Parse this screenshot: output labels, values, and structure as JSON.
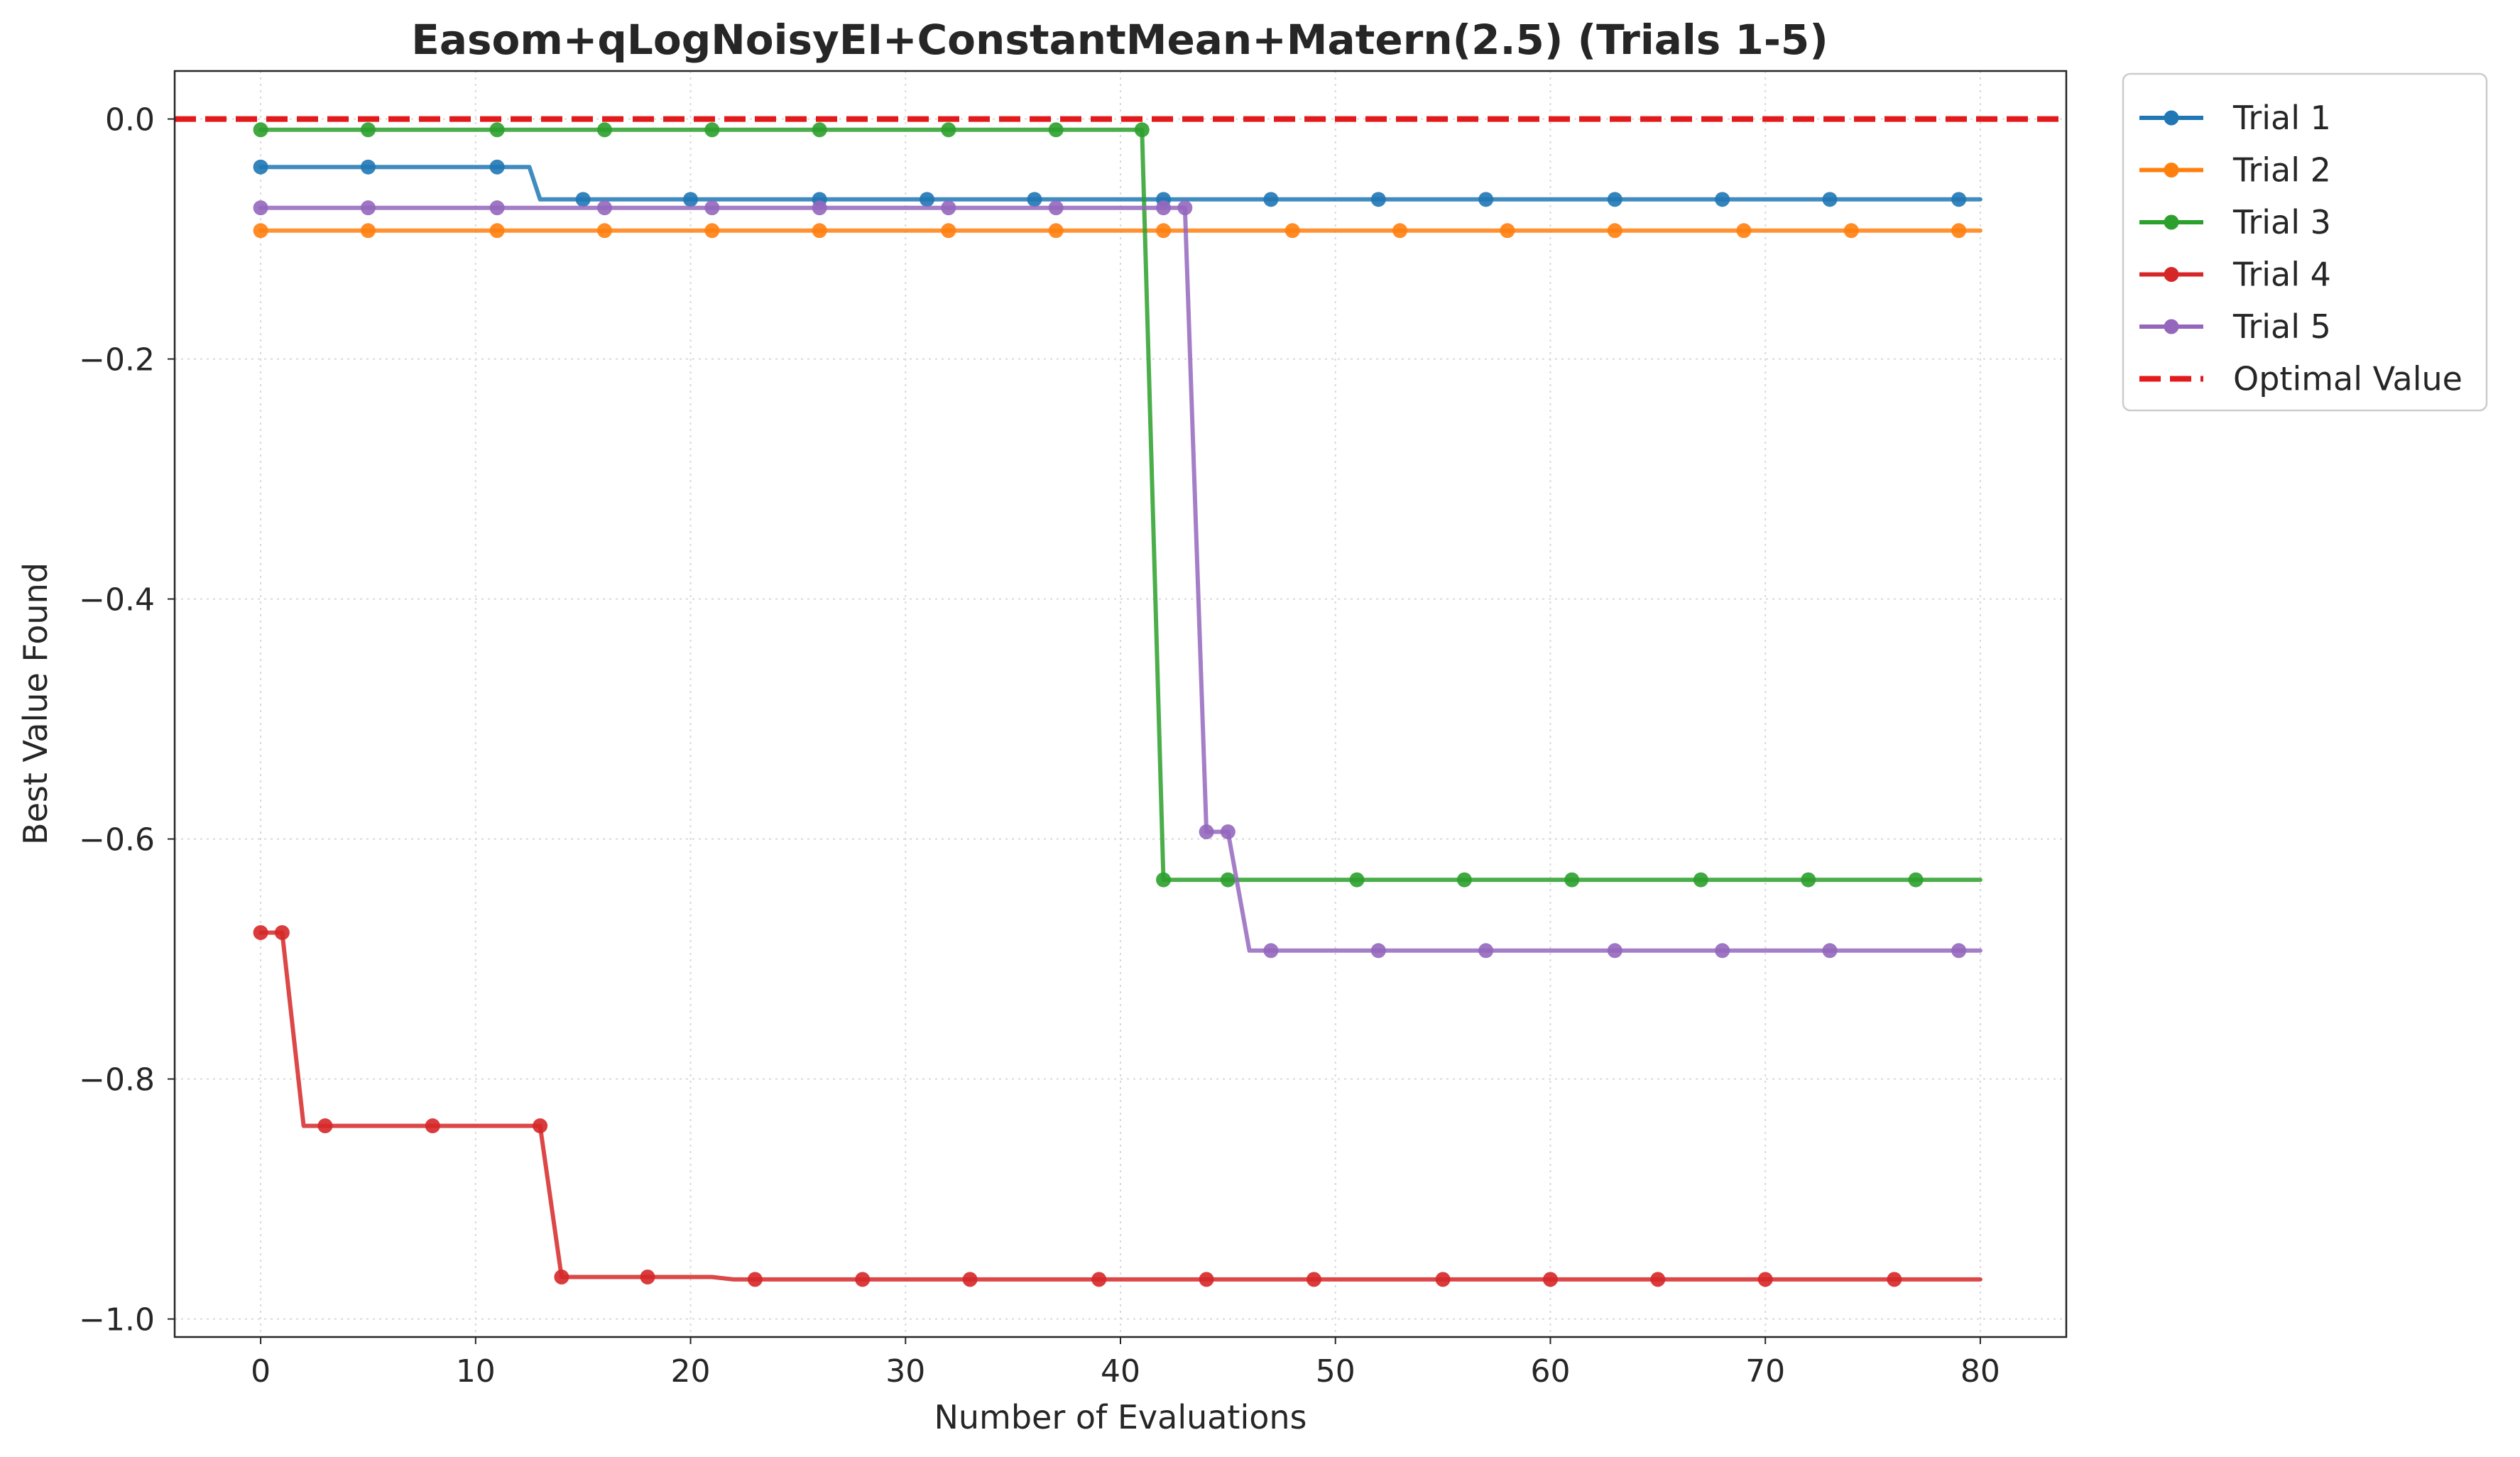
{
  "chart_data": {
    "type": "line",
    "title": "Easom+qLogNoisyEI+ConstantMean+Matern(2.5) (Trials 1-5)",
    "xlabel": "Number of Evaluations",
    "ylabel": "Best Value Found",
    "xlim": [
      -4,
      84
    ],
    "ylim": [
      -1.015,
      0.04
    ],
    "xticks": [
      0,
      10,
      20,
      30,
      40,
      50,
      60,
      70,
      80
    ],
    "xtick_labels": [
      "0",
      "10",
      "20",
      "30",
      "40",
      "50",
      "60",
      "70",
      "80"
    ],
    "yticks": [
      0.0,
      -0.2,
      -0.4,
      -0.6,
      -0.8,
      -1.0
    ],
    "ytick_labels": [
      "0.0",
      "−0.2",
      "−0.4",
      "−0.6",
      "−0.8",
      "−1.0"
    ],
    "grid": true,
    "legend_position": "outside-upper-right",
    "series": [
      {
        "name": "Trial 1",
        "color": "#1f77b4",
        "line": [
          [
            0,
            -0.04
          ],
          [
            12.5,
            -0.04
          ],
          [
            13,
            -0.067
          ],
          [
            80,
            -0.067
          ]
        ],
        "markers": [
          [
            0,
            -0.04
          ],
          [
            5,
            -0.04
          ],
          [
            11,
            -0.04
          ],
          [
            15,
            -0.067
          ],
          [
            20,
            -0.067
          ],
          [
            26,
            -0.067
          ],
          [
            31,
            -0.067
          ],
          [
            36,
            -0.067
          ],
          [
            42,
            -0.067
          ],
          [
            47,
            -0.067
          ],
          [
            52,
            -0.067
          ],
          [
            57,
            -0.067
          ],
          [
            63,
            -0.067
          ],
          [
            68,
            -0.067
          ],
          [
            73,
            -0.067
          ],
          [
            79,
            -0.067
          ]
        ]
      },
      {
        "name": "Trial 2",
        "color": "#ff7f0e",
        "line": [
          [
            0,
            -0.093
          ],
          [
            80,
            -0.093
          ]
        ],
        "markers": [
          [
            0,
            -0.093
          ],
          [
            5,
            -0.093
          ],
          [
            11,
            -0.093
          ],
          [
            16,
            -0.093
          ],
          [
            21,
            -0.093
          ],
          [
            26,
            -0.093
          ],
          [
            32,
            -0.093
          ],
          [
            37,
            -0.093
          ],
          [
            42,
            -0.093
          ],
          [
            48,
            -0.093
          ],
          [
            53,
            -0.093
          ],
          [
            58,
            -0.093
          ],
          [
            63,
            -0.093
          ],
          [
            69,
            -0.093
          ],
          [
            74,
            -0.093
          ],
          [
            79,
            -0.093
          ]
        ]
      },
      {
        "name": "Trial 3",
        "color": "#2ca02c",
        "line": [
          [
            0,
            -0.009
          ],
          [
            41,
            -0.009
          ],
          [
            42,
            -0.634
          ],
          [
            80,
            -0.634
          ]
        ],
        "markers": [
          [
            0,
            -0.009
          ],
          [
            5,
            -0.009
          ],
          [
            11,
            -0.009
          ],
          [
            16,
            -0.009
          ],
          [
            21,
            -0.009
          ],
          [
            26,
            -0.009
          ],
          [
            32,
            -0.009
          ],
          [
            37,
            -0.009
          ],
          [
            41,
            -0.009
          ],
          [
            42,
            -0.634
          ],
          [
            45,
            -0.634
          ],
          [
            51,
            -0.634
          ],
          [
            56,
            -0.634
          ],
          [
            61,
            -0.634
          ],
          [
            67,
            -0.634
          ],
          [
            72,
            -0.634
          ],
          [
            77,
            -0.634
          ]
        ]
      },
      {
        "name": "Trial 4",
        "color": "#d62728",
        "line": [
          [
            0,
            -0.678
          ],
          [
            1,
            -0.678
          ],
          [
            2,
            -0.839
          ],
          [
            13,
            -0.839
          ],
          [
            14,
            -0.965
          ],
          [
            21,
            -0.965
          ],
          [
            22,
            -0.967
          ],
          [
            80,
            -0.967
          ]
        ],
        "markers": [
          [
            0,
            -0.678
          ],
          [
            1,
            -0.678
          ],
          [
            3,
            -0.839
          ],
          [
            8,
            -0.839
          ],
          [
            13,
            -0.839
          ],
          [
            14,
            -0.965
          ],
          [
            18,
            -0.965
          ],
          [
            23,
            -0.967
          ],
          [
            28,
            -0.967
          ],
          [
            33,
            -0.967
          ],
          [
            39,
            -0.967
          ],
          [
            44,
            -0.967
          ],
          [
            49,
            -0.967
          ],
          [
            55,
            -0.967
          ],
          [
            60,
            -0.967
          ],
          [
            65,
            -0.967
          ],
          [
            70,
            -0.967
          ],
          [
            76,
            -0.967
          ]
        ]
      },
      {
        "name": "Trial 5",
        "color": "#9467bd",
        "line": [
          [
            0,
            -0.074
          ],
          [
            43,
            -0.074
          ],
          [
            44,
            -0.594
          ],
          [
            45,
            -0.594
          ],
          [
            46,
            -0.693
          ],
          [
            80,
            -0.693
          ]
        ],
        "markers": [
          [
            0,
            -0.074
          ],
          [
            5,
            -0.074
          ],
          [
            11,
            -0.074
          ],
          [
            16,
            -0.074
          ],
          [
            21,
            -0.074
          ],
          [
            26,
            -0.074
          ],
          [
            32,
            -0.074
          ],
          [
            37,
            -0.074
          ],
          [
            42,
            -0.074
          ],
          [
            43,
            -0.074
          ],
          [
            44,
            -0.594
          ],
          [
            45,
            -0.594
          ],
          [
            47,
            -0.693
          ],
          [
            52,
            -0.693
          ],
          [
            57,
            -0.693
          ],
          [
            63,
            -0.693
          ],
          [
            68,
            -0.693
          ],
          [
            73,
            -0.693
          ],
          [
            79,
            -0.693
          ]
        ]
      }
    ],
    "reference_line": {
      "name": "Optimal Value",
      "y": 0.0,
      "color": "#e31a1c",
      "style": "dashed"
    }
  }
}
